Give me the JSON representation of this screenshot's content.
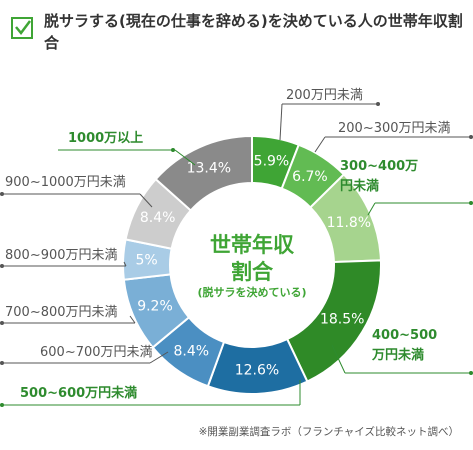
{
  "chart_data": {
    "type": "donut",
    "title": "脱サラする(現在の仕事を辞める)を決めている人の世帯年収割合",
    "center_label": [
      "世帯年収",
      "割合"
    ],
    "center_sublabel": "(脱サラを決めている)",
    "categories": [
      "200万円未満",
      "200~300万円未満",
      "300~400万円未満",
      "400~500万円未満",
      "500~600万円未満",
      "600~700万円未満",
      "700~800万円未満",
      "800~900万円未満",
      "900~1000万円未満",
      "1000万以上"
    ],
    "values": [
      5.9,
      6.7,
      11.8,
      18.5,
      12.6,
      8.4,
      9.2,
      5,
      8.4,
      13.4
    ],
    "value_labels": [
      "5.9%",
      "6.7%",
      "11.8%",
      "18.5%",
      "12.6%",
      "8.4%",
      "9.2%",
      "5%",
      "8.4%",
      "13.4%"
    ],
    "colors": [
      "#3fa535",
      "#62bb53",
      "#a6d48e",
      "#2f8a27",
      "#1e6ea2",
      "#4b8fc2",
      "#7aafd6",
      "#a9cce6",
      "#cdcdcd",
      "#8a8a8a"
    ],
    "label_colors": [
      "#555555",
      "#555555",
      "#2e8b2e",
      "#2e8b2e",
      "#2e8b2e",
      "#555555",
      "#555555",
      "#555555",
      "#555555",
      "#2e8b2e"
    ],
    "source": "※開業副業調査ラボ（フランチャイズ比較ネット調べ）"
  }
}
